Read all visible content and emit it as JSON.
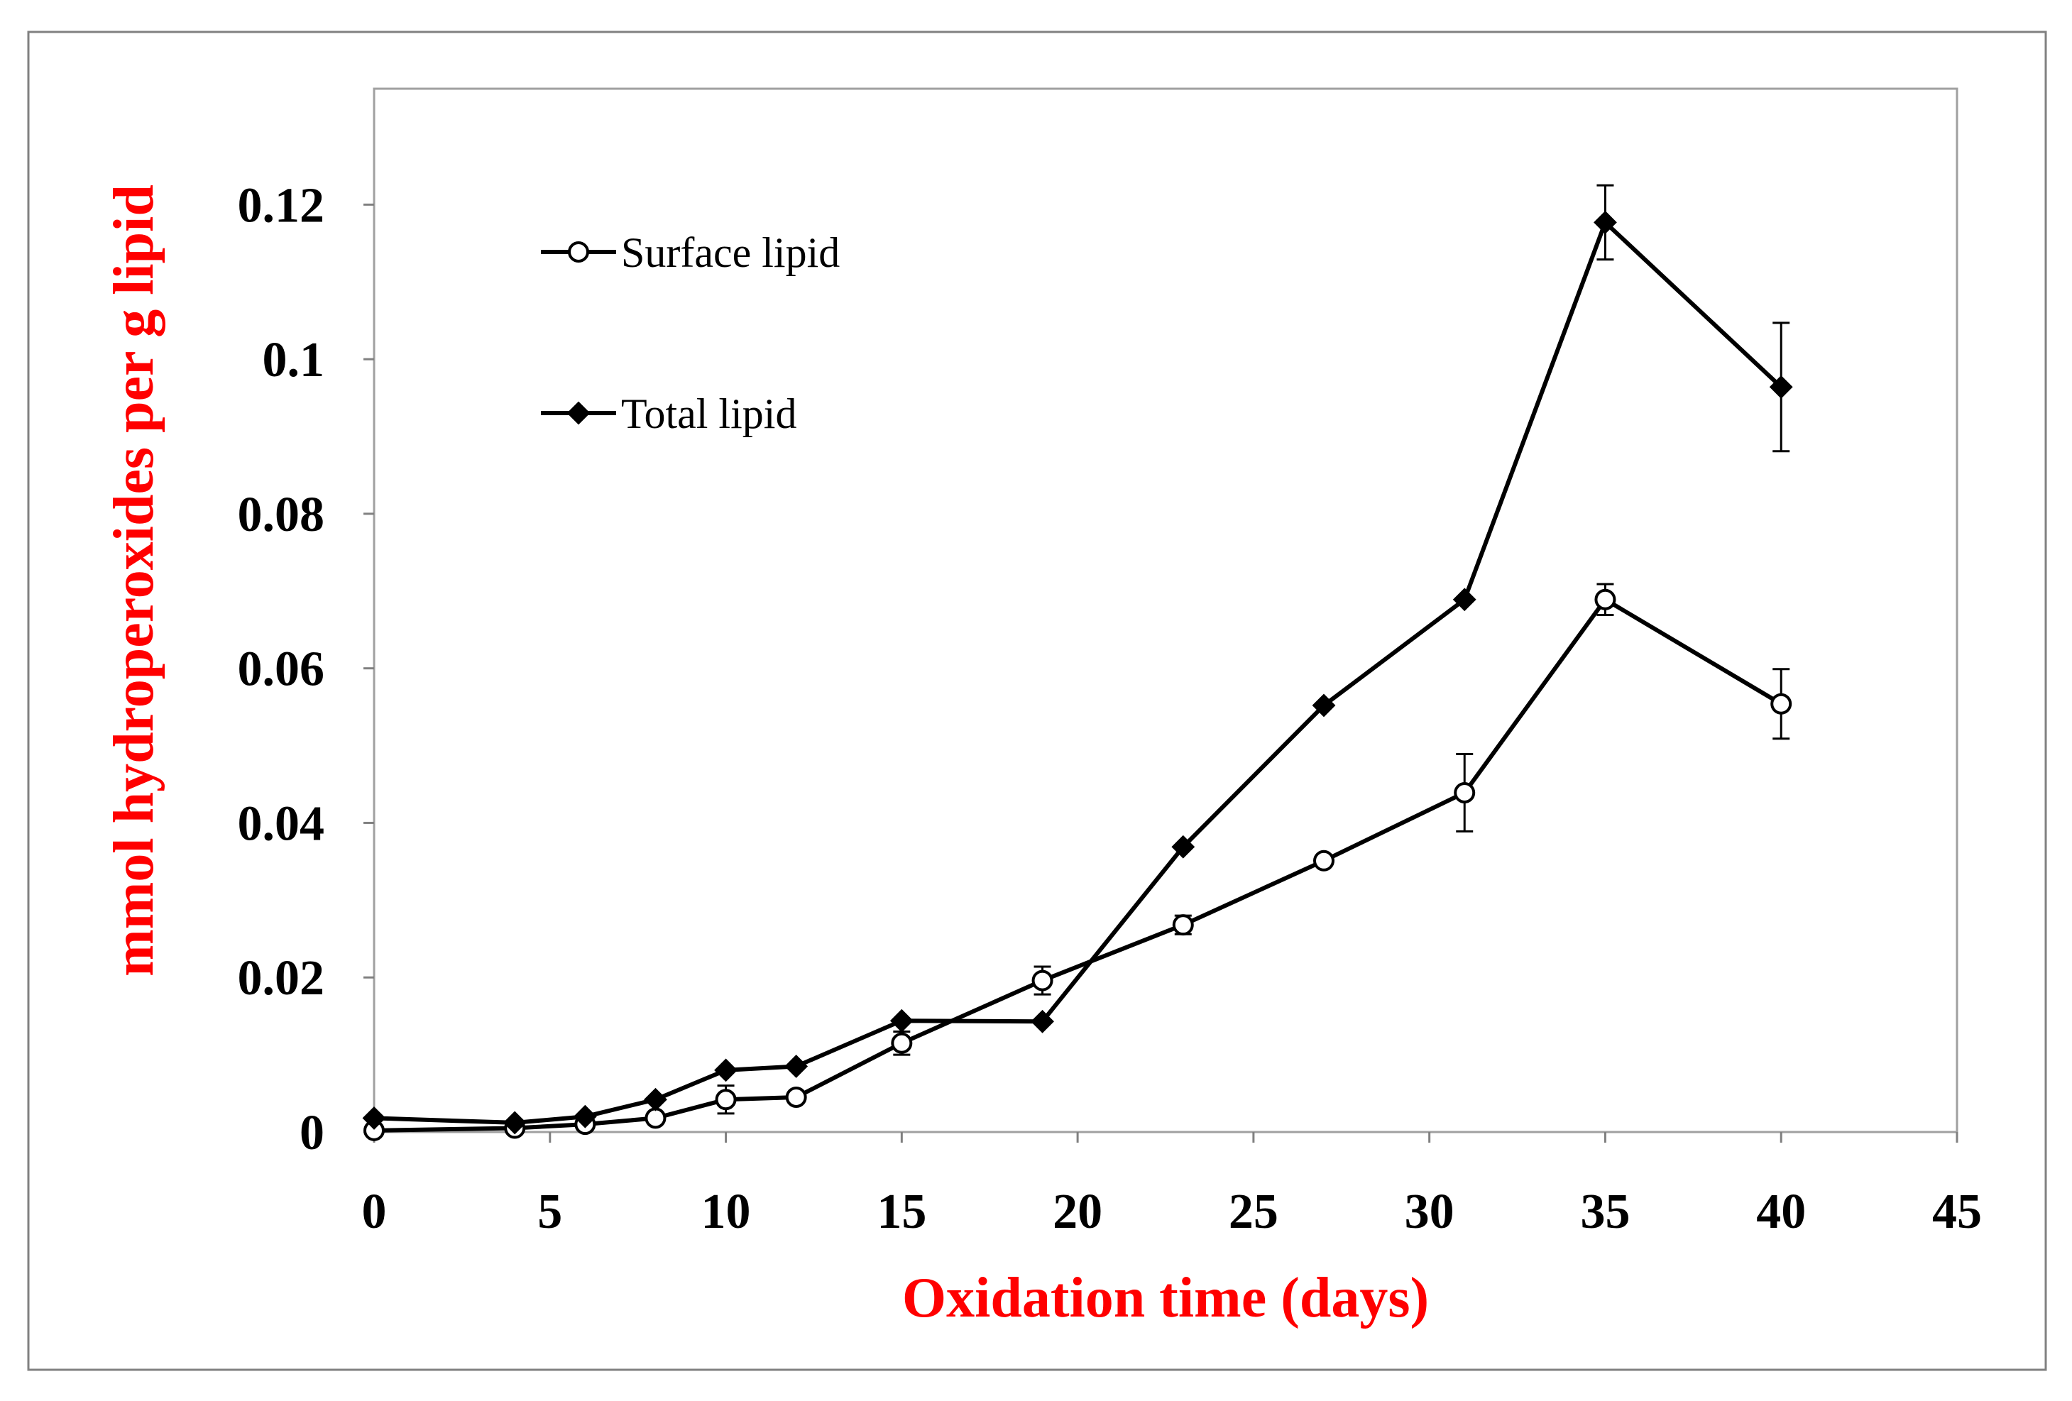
{
  "chart_data": {
    "type": "line",
    "title": "",
    "xlabel": "Oxidation time (days)",
    "ylabel": "mmol hydroperoxides per g lipid",
    "xlim": [
      0,
      45
    ],
    "ylim": [
      0,
      0.135
    ],
    "xticks": [
      0,
      5,
      10,
      15,
      20,
      25,
      30,
      35,
      40,
      45
    ],
    "xtick_labels": [
      "0",
      "5",
      "10",
      "15",
      "20",
      "25",
      "30",
      "35",
      "40",
      "45"
    ],
    "yticks": [
      0,
      0.02,
      0.04,
      0.06,
      0.08,
      0.1,
      0.12
    ],
    "ytick_labels": [
      "0",
      "0.02",
      "0.04",
      "0.06",
      "0.08",
      "0.1",
      "0.12"
    ],
    "grid": false,
    "legend_position": "top-left",
    "series": [
      {
        "name": "Surface lipid",
        "marker": "open-circle",
        "x": [
          0,
          4,
          6,
          8,
          10,
          12,
          15,
          19,
          23,
          27,
          31,
          35,
          40
        ],
        "y": [
          0.0002,
          0.0005,
          0.001,
          0.0018,
          0.0042,
          0.0045,
          0.0115,
          0.0196,
          0.0268,
          0.0351,
          0.0439,
          0.0689,
          0.0554
        ],
        "error": [
          0,
          0,
          0,
          0,
          0.0018,
          0,
          0.0015,
          0.0018,
          0.0012,
          0,
          0.005,
          0.002,
          0.0045
        ]
      },
      {
        "name": "Total lipid",
        "marker": "filled-diamond",
        "x": [
          0,
          4,
          6,
          8,
          10,
          12,
          15,
          19,
          23,
          27,
          31,
          35,
          40
        ],
        "y": [
          0.0018,
          0.0012,
          0.002,
          0.0042,
          0.008,
          0.0085,
          0.0144,
          0.0143,
          0.0369,
          0.0552,
          0.0689,
          0.1177,
          0.0964
        ],
        "error": [
          0,
          0,
          0,
          0,
          0,
          0,
          0,
          0,
          0,
          0,
          0,
          0.0048,
          0.0083
        ]
      }
    ]
  },
  "colors": {
    "title_text": "#ff0000",
    "line": "#000000",
    "frame": "#808080",
    "axis": "#808080"
  }
}
